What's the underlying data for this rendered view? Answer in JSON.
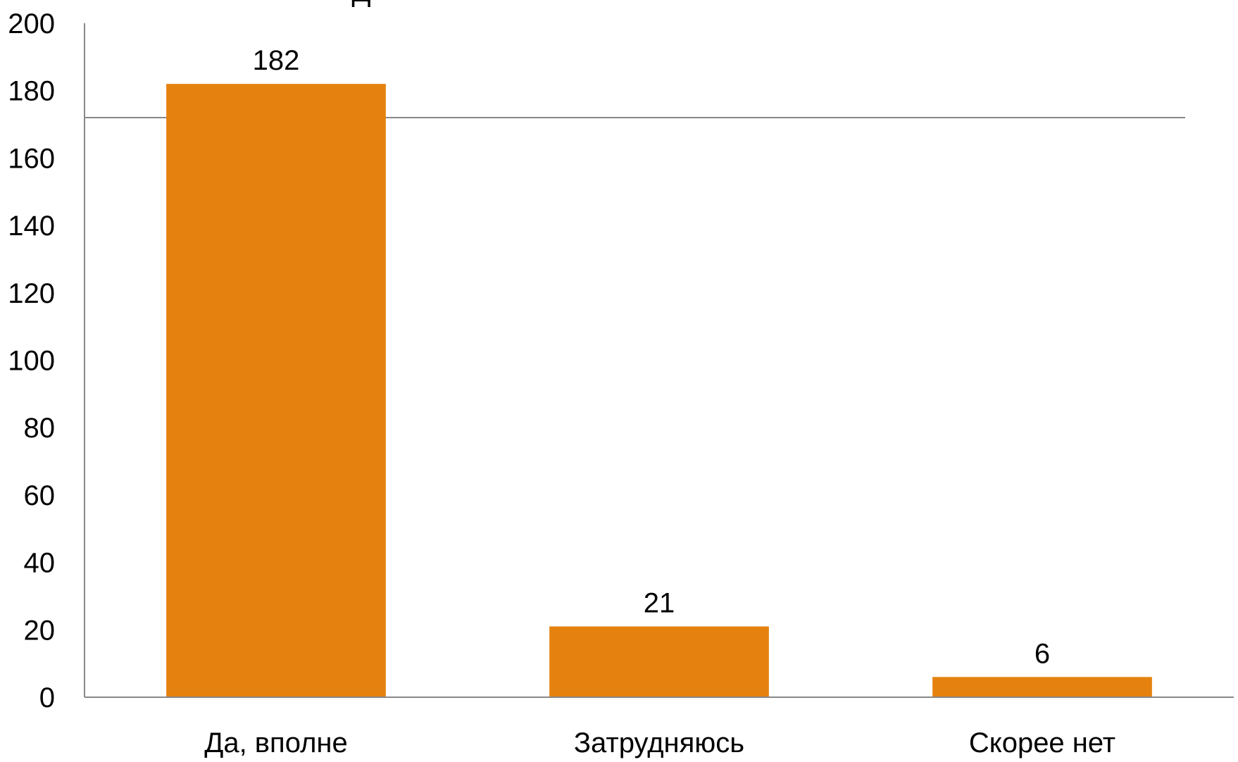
{
  "chart_data": {
    "type": "bar",
    "categories": [
      "Да, вполне",
      "Затрудняюсь",
      "Скорее нет"
    ],
    "values": [
      182,
      21,
      6
    ],
    "data_labels": [
      "182",
      "21",
      "6"
    ],
    "title": "Д",
    "xlabel": "",
    "ylabel": "",
    "ylim": [
      0,
      200
    ],
    "yticks": [
      0,
      20,
      40,
      60,
      80,
      100,
      120,
      140,
      160,
      180,
      200
    ],
    "ytick_labels": [
      "0",
      "20",
      "40",
      "60",
      "80",
      "100",
      "120",
      "140",
      "160",
      "180",
      "200"
    ],
    "reference_line": 172,
    "grid": false,
    "legend": "none",
    "bar_color": "#E5820F"
  }
}
